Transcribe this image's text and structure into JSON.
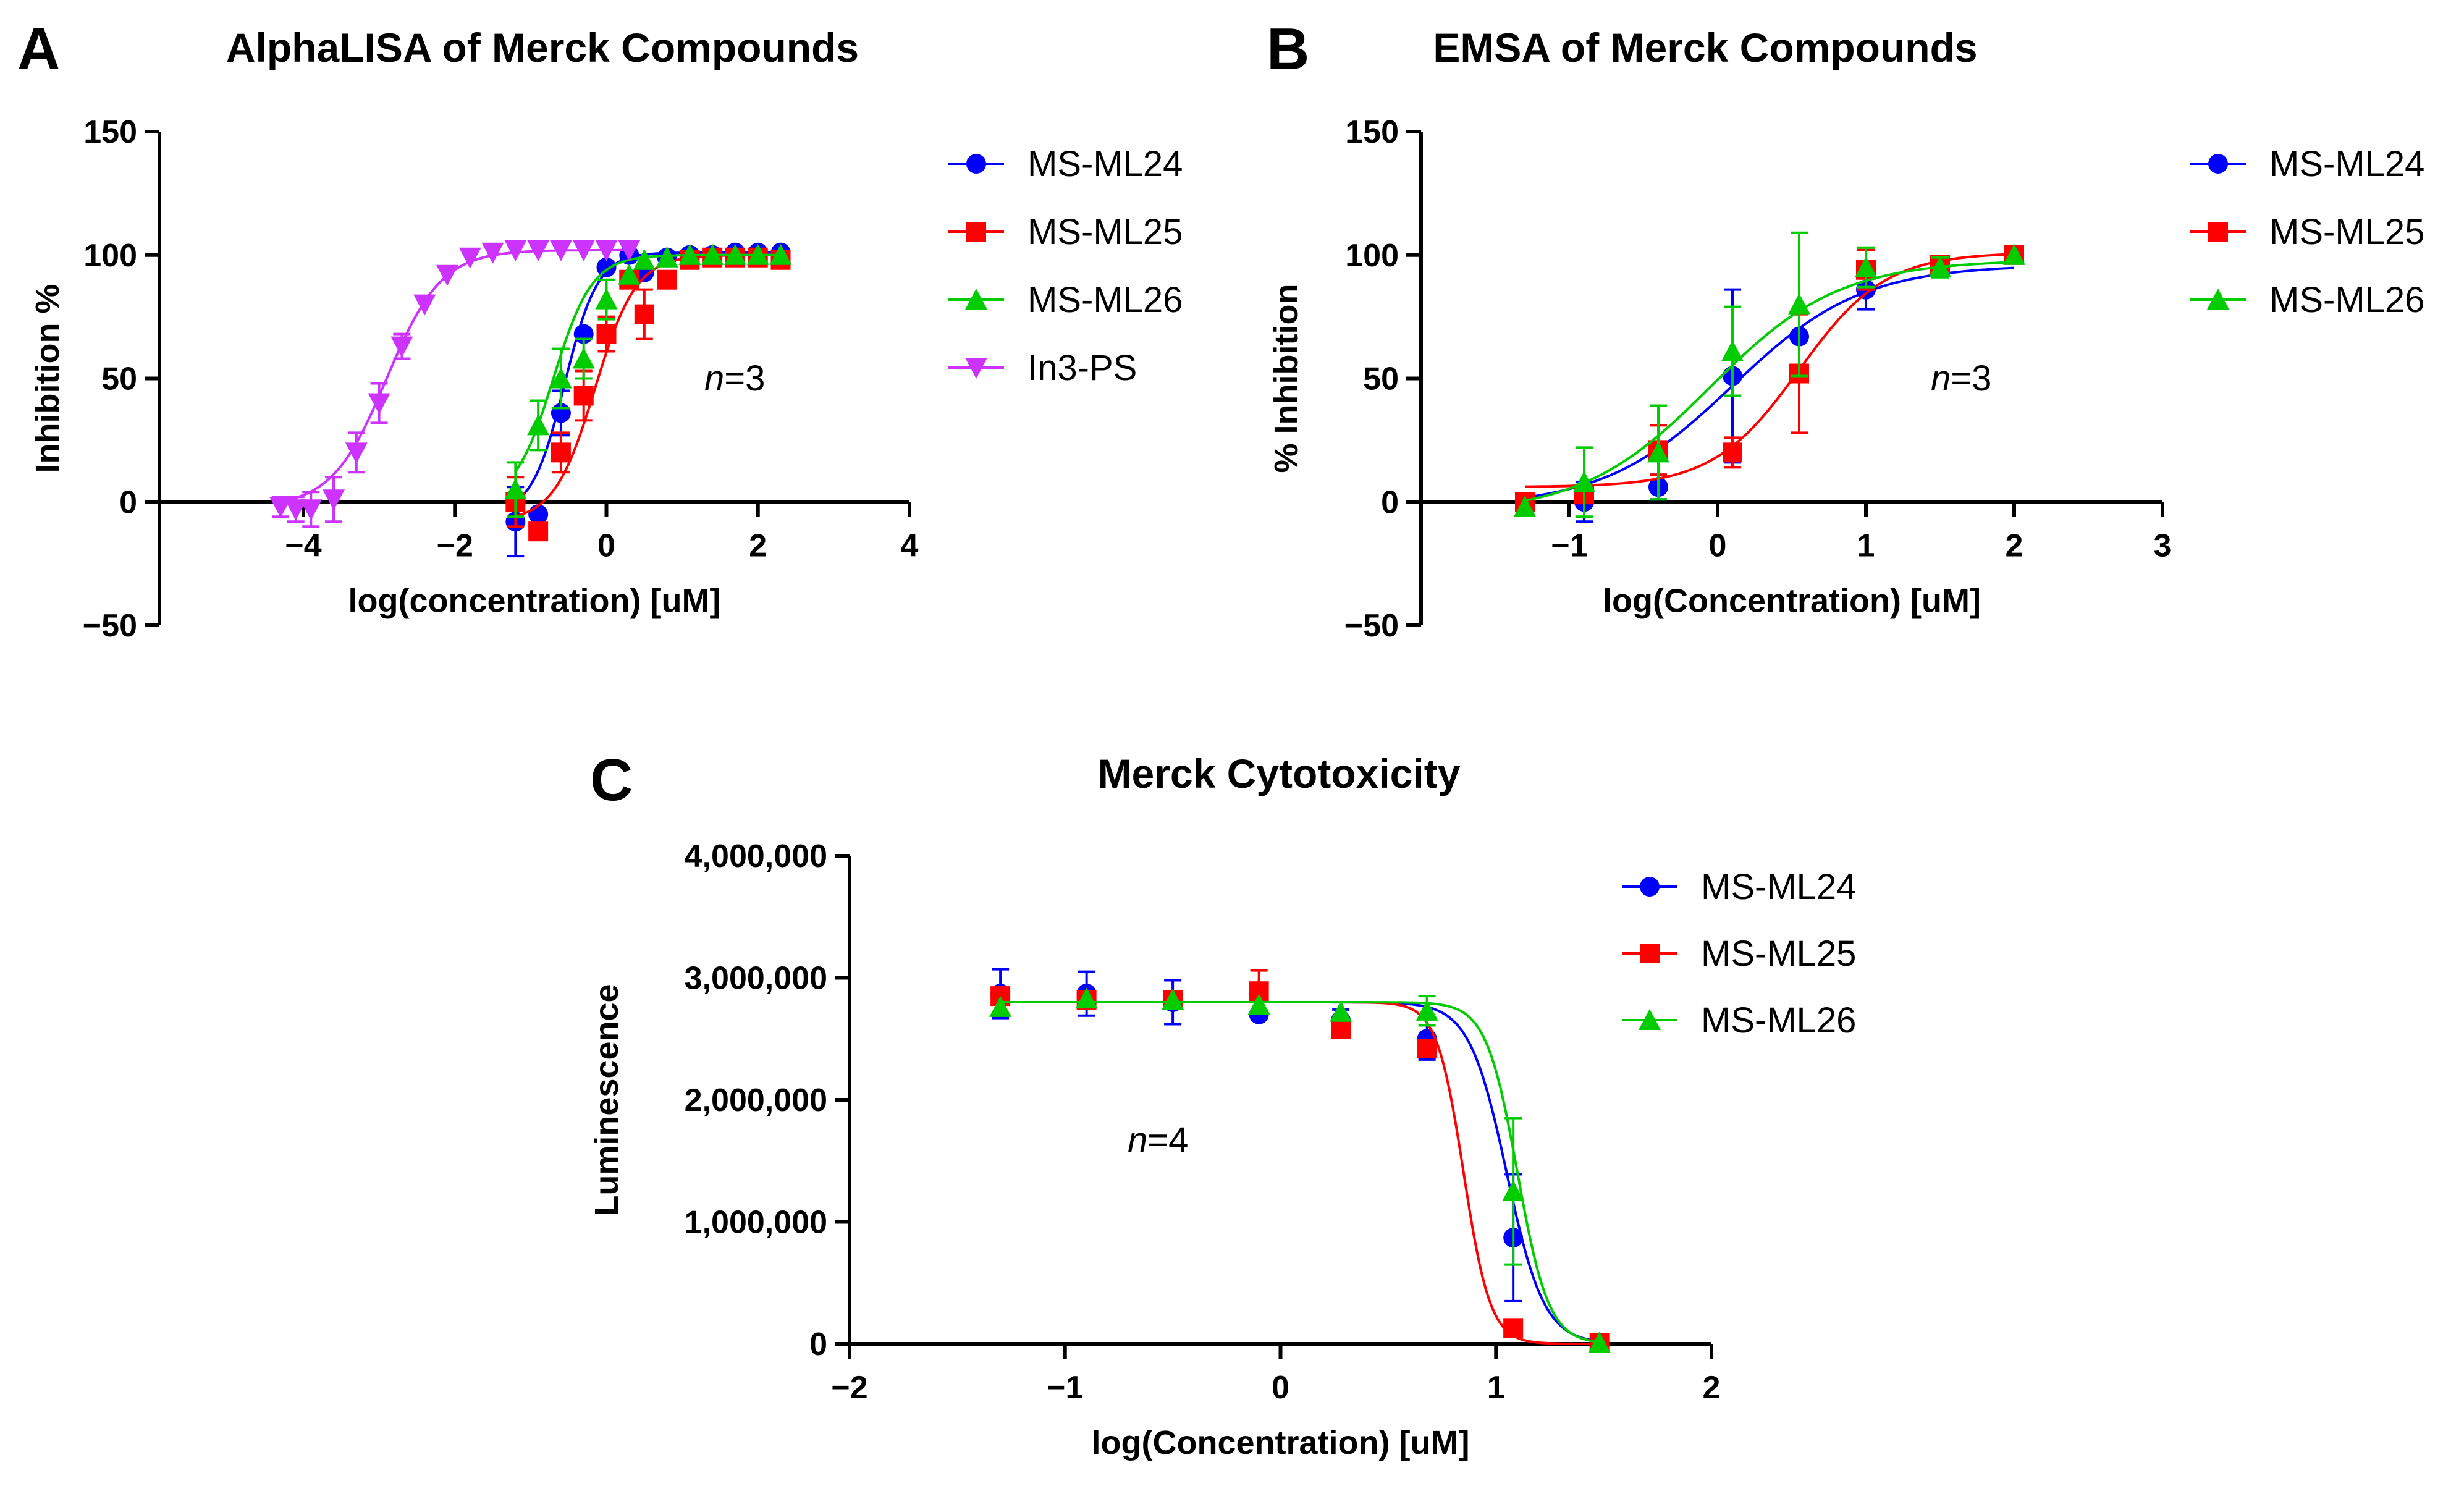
{
  "chart_data": [
    {
      "panel": "A",
      "type": "scatter",
      "title": "AlphaLISA of Merck Compounds",
      "xlabel": "log(concentration) [uM]",
      "ylabel": "Inhibition %",
      "xlim": [
        -5.9,
        4
      ],
      "ylim": [
        -50,
        150
      ],
      "xticks": [
        -4,
        -2,
        0,
        2,
        4
      ],
      "yticks": [
        -50,
        0,
        50,
        100,
        150
      ],
      "annotation": {
        "italic": "n",
        "rest": "=3"
      },
      "series": [
        {
          "name": "MS-ML24",
          "color": "#0000ff",
          "marker": "circle",
          "x": [
            -1.2,
            -0.9,
            -0.6,
            -0.3,
            0.0,
            0.3,
            0.5,
            0.8,
            1.1,
            1.4,
            1.7,
            2.0,
            2.3
          ],
          "y": [
            -8,
            -5,
            36,
            68,
            95,
            100,
            93,
            99,
            100,
            100,
            101,
            101,
            101
          ],
          "err": [
            14,
            0,
            9,
            0,
            0,
            0,
            0,
            0,
            0,
            0,
            0,
            0,
            0
          ],
          "fit": {
            "bottom": -5,
            "top": 101,
            "logEC50": -0.55,
            "hill": 2.0
          }
        },
        {
          "name": "MS-ML25",
          "color": "#ff0000",
          "marker": "square",
          "x": [
            -1.2,
            -0.9,
            -0.6,
            -0.3,
            0.0,
            0.3,
            0.5,
            0.8,
            1.1,
            1.4,
            1.7,
            2.0,
            2.3
          ],
          "y": [
            0,
            -12,
            20,
            43,
            68,
            90,
            76,
            90,
            98,
            99,
            99,
            99,
            98
          ],
          "err": [
            10,
            0,
            8,
            10,
            7,
            0,
            10,
            0,
            0,
            0,
            0,
            0,
            0
          ],
          "fit": {
            "bottom": -8,
            "top": 100,
            "logEC50": -0.15,
            "hill": 1.6
          }
        },
        {
          "name": "MS-ML26",
          "color": "#00cc00",
          "marker": "triangle",
          "x": [
            -1.2,
            -0.9,
            -0.6,
            -0.3,
            0.0,
            0.3,
            0.5,
            0.8,
            1.1,
            1.4,
            1.7,
            2.0,
            2.3
          ],
          "y": [
            5,
            31,
            50,
            58,
            82,
            92,
            98,
            99,
            100,
            100,
            100,
            100,
            100
          ],
          "err": [
            11,
            10,
            12,
            8,
            8,
            0,
            0,
            0,
            0,
            0,
            0,
            0,
            0
          ],
          "fit": {
            "bottom": 0,
            "top": 100,
            "logEC50": -0.7,
            "hill": 1.7
          }
        },
        {
          "name": "In3-PS",
          "color": "#cc33ff",
          "marker": "down-triangle",
          "x": [
            -4.3,
            -4.1,
            -3.9,
            -3.6,
            -3.3,
            -3.0,
            -2.7,
            -2.4,
            -2.1,
            -1.8,
            -1.5,
            -1.2,
            -0.9,
            -0.6,
            -0.3,
            0.0,
            0.3
          ],
          "y": [
            -2,
            -3,
            -3,
            1,
            20,
            40,
            63,
            80,
            92,
            99,
            101,
            102,
            102,
            102,
            102,
            102,
            102
          ],
          "err": [
            4,
            5,
            7,
            9,
            8,
            8,
            5,
            0,
            0,
            0,
            0,
            0,
            0,
            0,
            0,
            0,
            0
          ],
          "fit": {
            "bottom": -2,
            "top": 102,
            "logEC50": -2.9,
            "hill": 1.2
          }
        }
      ]
    },
    {
      "panel": "B",
      "type": "scatter",
      "title": "EMSA of Merck Compounds",
      "xlabel": "log(Concentration) [uM]",
      "ylabel": "% Inhibition",
      "xlim": [
        -2,
        3
      ],
      "ylim": [
        -50,
        150
      ],
      "xticks": [
        -1,
        0,
        1,
        2,
        3
      ],
      "yticks": [
        -50,
        0,
        50,
        100,
        150
      ],
      "annotation": {
        "italic": "n",
        "rest": "=3"
      },
      "series": [
        {
          "name": "MS-ML24",
          "color": "#0000ff",
          "marker": "circle",
          "x": [
            -1.3,
            -0.9,
            -0.4,
            0.1,
            0.55,
            1.0,
            1.5,
            2.0
          ],
          "y": [
            0,
            0,
            6,
            51,
            67,
            86,
            96,
            100
          ],
          "err": [
            0,
            8,
            5,
            35,
            0,
            8,
            0,
            0
          ],
          "fit": {
            "bottom": -2,
            "top": 96,
            "logEC50": 0.1,
            "hill": 1.0
          }
        },
        {
          "name": "MS-ML25",
          "color": "#ff0000",
          "marker": "square",
          "x": [
            -1.3,
            -0.9,
            -0.4,
            0.1,
            0.55,
            1.0,
            1.5,
            2.0
          ],
          "y": [
            0,
            3,
            21,
            20,
            52,
            94,
            96,
            100
          ],
          "err": [
            0,
            0,
            10,
            6,
            24,
            8,
            0,
            0
          ],
          "fit": {
            "bottom": 6,
            "top": 101,
            "logEC50": 0.55,
            "hill": 1.5
          }
        },
        {
          "name": "MS-ML26",
          "color": "#00cc00",
          "marker": "triangle",
          "x": [
            -1.3,
            -0.9,
            -0.4,
            0.1,
            0.55,
            1.0,
            1.5,
            2.0
          ],
          "y": [
            -2,
            8,
            20,
            61,
            80,
            95,
            95,
            100
          ],
          "err": [
            0,
            14,
            19,
            18,
            29,
            8,
            4,
            0
          ],
          "fit": {
            "bottom": -5,
            "top": 98,
            "logEC50": -0.05,
            "hill": 1.0
          }
        }
      ]
    },
    {
      "panel": "C",
      "type": "scatter",
      "title": "Merck Cytotoxicity",
      "xlabel": "log(Concentration) [uM]",
      "ylabel": "Luminescence",
      "xlim": [
        -2,
        2
      ],
      "ylim": [
        0,
        4000000
      ],
      "xticks": [
        -2,
        -1,
        0,
        1,
        2
      ],
      "yticks": [
        0,
        1000000,
        2000000,
        3000000,
        4000000
      ],
      "ytick_labels": [
        "0",
        "1,000,000",
        "2,000,000",
        "3,000,000",
        "4,000,000"
      ],
      "annotation": {
        "italic": "n",
        "rest": "=4"
      },
      "series": [
        {
          "name": "MS-ML24",
          "color": "#0000ff",
          "marker": "circle",
          "x": [
            -1.3,
            -0.9,
            -0.5,
            -0.1,
            0.28,
            0.68,
            1.08,
            1.48
          ],
          "y": [
            2870000,
            2870000,
            2800000,
            2700000,
            2650000,
            2500000,
            870000,
            10000
          ],
          "err": [
            200000,
            180000,
            180000,
            0,
            90000,
            170000,
            520000,
            0
          ],
          "fit": {
            "bottom": 0,
            "top": 2800000,
            "logEC50": 1.05,
            "hill": -5.0
          }
        },
        {
          "name": "MS-ML25",
          "color": "#ff0000",
          "marker": "square",
          "x": [
            -1.3,
            -0.9,
            -0.5,
            -0.1,
            0.28,
            0.68,
            1.08,
            1.48
          ],
          "y": [
            2850000,
            2820000,
            2820000,
            2890000,
            2580000,
            2420000,
            130000,
            10000
          ],
          "err": [
            0,
            0,
            0,
            170000,
            0,
            0,
            0,
            0
          ],
          "fit": {
            "bottom": 0,
            "top": 2800000,
            "logEC50": 0.85,
            "hill": -7.0
          }
        },
        {
          "name": "MS-ML26",
          "color": "#00cc00",
          "marker": "triangle",
          "x": [
            -1.3,
            -0.9,
            -0.5,
            -0.1,
            0.28,
            0.68,
            1.08,
            1.48
          ],
          "y": [
            2760000,
            2830000,
            2820000,
            2780000,
            2720000,
            2730000,
            1250000,
            10000
          ],
          "err": [
            0,
            0,
            0,
            0,
            0,
            120000,
            600000,
            0
          ],
          "fit": {
            "bottom": 0,
            "top": 2800000,
            "logEC50": 1.1,
            "hill": -6.0
          }
        }
      ]
    }
  ]
}
